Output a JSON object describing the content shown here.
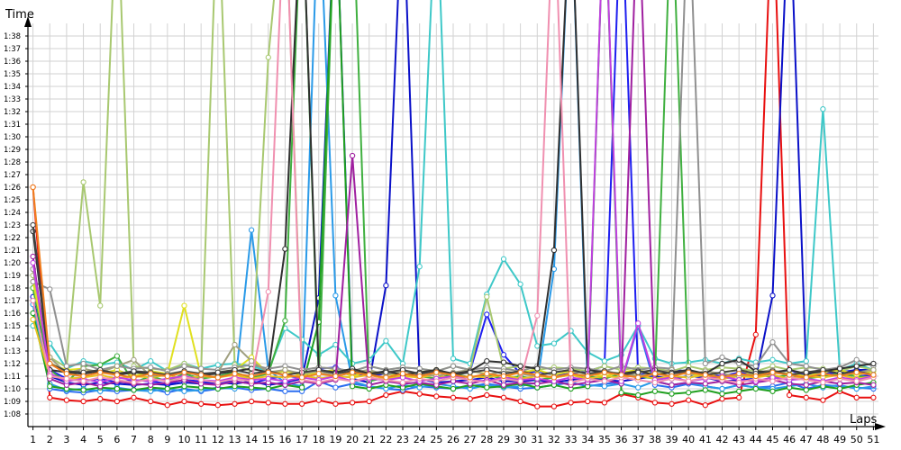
{
  "chart_data": {
    "type": "line",
    "xlabel": "Laps",
    "ylabel": "Time",
    "x": [
      1,
      2,
      3,
      4,
      5,
      6,
      7,
      8,
      9,
      10,
      11,
      12,
      13,
      14,
      15,
      16,
      17,
      18,
      19,
      20,
      21,
      22,
      23,
      24,
      25,
      26,
      27,
      28,
      29,
      30,
      31,
      32,
      33,
      34,
      35,
      36,
      37,
      38,
      39,
      40,
      41,
      42,
      43,
      44,
      45,
      46,
      47,
      48,
      49,
      50,
      51
    ],
    "xlim": [
      0.7,
      51.3
    ],
    "ylim_seconds": [
      67.0,
      99.0
    ],
    "y_ticks": [
      "1:08",
      "1:09",
      "1:10",
      "1:11",
      "1:12",
      "1:13",
      "1:14",
      "1:15",
      "1:16",
      "1:17",
      "1:18",
      "1:19",
      "1:20",
      "1:21",
      "1:22",
      "1:23",
      "1:24",
      "1:25",
      "1:26",
      "1:27",
      "1:28",
      "1:29",
      "1:30",
      "1:31",
      "1:32",
      "1:33",
      "1:34",
      "1:35",
      "1:36",
      "1:37",
      "1:38"
    ],
    "y_ticks_seconds": [
      68,
      69,
      70,
      71,
      72,
      73,
      74,
      75,
      76,
      77,
      78,
      79,
      80,
      81,
      82,
      83,
      84,
      85,
      86,
      87,
      88,
      89,
      90,
      91,
      92,
      93,
      94,
      95,
      96,
      97,
      98
    ],
    "grid": true,
    "legend": "none",
    "series": [
      {
        "color": "#e81010",
        "values": [
          86.0,
          69.3,
          69.1,
          69.0,
          69.2,
          69.0,
          69.3,
          69.0,
          68.7,
          69.0,
          68.8,
          68.7,
          68.8,
          69.0,
          68.9,
          68.8,
          68.8,
          69.1,
          68.8,
          68.9,
          69.0,
          69.5,
          69.8,
          69.6,
          69.4,
          69.3,
          69.2,
          69.5,
          69.3,
          69.0,
          68.6,
          68.6,
          68.9,
          69.0,
          68.9,
          69.6,
          69.3,
          68.9,
          68.8,
          69.1,
          68.7,
          69.2,
          69.3,
          74.3,
          110,
          69.5,
          69.3,
          69.1,
          69.8,
          69.3,
          69.3
        ]
      },
      {
        "color": "#0a10c8",
        "values": [
          77.3,
          71.0,
          70.5,
          70.3,
          70.5,
          70.4,
          70.3,
          70.4,
          70.3,
          70.5,
          70.4,
          70.5,
          70.4,
          70.6,
          70.3,
          70.5,
          70.8,
          77.2,
          110,
          70.8,
          70.5,
          78.2,
          110,
          70.8,
          70.5,
          70.6,
          70.7,
          70.9,
          70.6,
          70.6,
          70.7,
          70.5,
          70.7,
          70.9,
          70.7,
          70.6,
          70.8,
          71.0,
          70.8,
          71.0,
          70.9,
          70.6,
          70.7,
          70.8,
          77.4,
          110,
          71.2,
          71.0,
          71.3,
          71.5,
          71.5
        ]
      },
      {
        "color": "#1e1ef0",
        "values": [
          79.5,
          71.5,
          70.8,
          70.6,
          70.8,
          70.5,
          70.7,
          70.6,
          70.4,
          70.7,
          70.6,
          70.5,
          70.6,
          70.4,
          70.8,
          71.0,
          70.9,
          71.6,
          71.7,
          71.2,
          71.0,
          71.2,
          71.5,
          71.0,
          71.3,
          71.2,
          71.4,
          75.9,
          72.7,
          71.2,
          71.4,
          71.1,
          71.2,
          71.4,
          71.8,
          110,
          71.1,
          71.3,
          71.5,
          71.4,
          71.2,
          71.0,
          71.3,
          71.1,
          71.2,
          71.5,
          71.0,
          71.3,
          71.2,
          71.0,
          71.1
        ]
      },
      {
        "color": "#2b6ef0",
        "values": [
          77.0,
          70.0,
          69.8,
          69.7,
          69.9,
          69.8,
          69.9,
          70.0,
          69.7,
          70.0,
          69.8,
          70.0,
          70.1,
          69.9,
          70.0,
          69.8,
          69.8,
          70.6,
          70.1,
          70.4,
          70.2,
          70.0,
          69.9,
          70.2,
          70.1,
          70.0,
          70.2,
          70.4,
          70.2,
          70.0,
          70.1,
          70.3,
          70.5,
          70.2,
          70.4,
          70.5,
          75.0,
          70.3,
          70.1,
          70.4,
          70.2,
          70.0,
          70.3,
          70.1,
          70.2,
          70.5,
          70.0,
          70.3,
          70.2,
          70.1,
          70.0
        ]
      },
      {
        "color": "#2a9ae8",
        "values": [
          76.7,
          70.4,
          69.9,
          70.0,
          69.8,
          70.1,
          69.9,
          69.8,
          70.0,
          69.8,
          69.9,
          70.1,
          70.0,
          82.6,
          71.5,
          70.5,
          70.2,
          110,
          77.4,
          70.6,
          70.2,
          70.0,
          70.3,
          70.1,
          70.4,
          70.2,
          70.0,
          70.3,
          70.1,
          70.2,
          70.5,
          79.5,
          110,
          70.3,
          70.2,
          70.4,
          70.1,
          70.6,
          70.3,
          70.5,
          70.2,
          70.0,
          70.3,
          70.1,
          70.0,
          70.2,
          70.4,
          70.1,
          70.3,
          70.0,
          70.2
        ]
      },
      {
        "color": "#3ec8c8",
        "values": [
          75.0,
          73.6,
          71.6,
          72.2,
          71.9,
          72.1,
          71.5,
          72.2,
          71.4,
          72.0,
          71.6,
          71.9,
          72.0,
          71.8,
          71.4,
          74.8,
          73.9,
          72.7,
          73.5,
          72.0,
          72.3,
          73.8,
          72.0,
          79.7,
          110,
          72.4,
          72.0,
          77.5,
          80.3,
          78.3,
          73.4,
          73.6,
          74.6,
          72.9,
          72.2,
          72.7,
          75.0,
          72.4,
          72.0,
          72.1,
          72.3,
          72.0,
          72.4,
          72.1,
          72.3,
          72.0,
          72.2,
          92.2,
          71.5,
          72.0,
          71.5
        ]
      },
      {
        "color": "#40b040",
        "values": [
          78.0,
          71.5,
          70.5,
          71.8,
          71.9,
          72.6,
          70.5,
          71.0,
          70.6,
          71.2,
          70.8,
          71.0,
          71.3,
          70.9,
          71.2,
          75.4,
          110,
          70.8,
          110,
          110,
          70.6,
          70.9,
          71.1,
          71.0,
          70.8,
          71.2,
          70.9,
          71.1,
          70.8,
          71.0,
          70.7,
          70.9,
          71.1,
          71.0,
          70.8,
          71.2,
          71.0,
          70.8,
          110,
          70.9,
          71.1,
          70.8,
          71.0,
          71.2,
          70.9,
          71.1,
          70.8,
          71.0,
          71.2,
          71.0,
          70.9
        ]
      },
      {
        "color": "#20a020",
        "values": [
          76.0,
          70.2,
          70.0,
          69.9,
          70.1,
          70.0,
          69.9,
          70.1,
          70.0,
          70.2,
          70.1,
          70.0,
          70.2,
          70.1,
          70.0,
          70.3,
          70.1,
          75.3,
          110,
          70.2,
          70.0,
          70.3,
          70.1,
          70.4,
          70.2,
          70.0,
          70.3,
          70.1,
          70.2,
          70.4,
          70.1,
          70.3,
          70.0,
          70.2,
          110,
          69.7,
          69.5,
          69.8,
          69.6,
          69.7,
          69.9,
          69.6,
          69.8,
          70.0,
          69.8,
          70.1,
          69.9,
          70.2,
          70.0,
          70.3,
          70.5
        ]
      },
      {
        "color": "#a8c870",
        "values": [
          79.0,
          72.5,
          71.7,
          86.4,
          76.6,
          110,
          71.8,
          71.6,
          71.5,
          72.0,
          71.5,
          110,
          71.9,
          71.4,
          96.3,
          110,
          71.5,
          71.7,
          71.6,
          71.4,
          71.8,
          71.5,
          71.7,
          71.6,
          71.4,
          71.8,
          71.5,
          77.3,
          71.6,
          71.8,
          71.5,
          71.7,
          71.6,
          71.4,
          71.8,
          71.5,
          71.7,
          71.6,
          71.4,
          71.8,
          71.5,
          71.7,
          71.6,
          71.4,
          71.8,
          71.5,
          71.7,
          71.6,
          71.4,
          71.8,
          71.5
        ]
      },
      {
        "color": "#e0e020",
        "values": [
          78.5,
          72.0,
          71.5,
          71.6,
          71.2,
          71.5,
          71.0,
          71.4,
          71.2,
          76.6,
          71.0,
          71.3,
          71.5,
          72.5,
          71.2,
          71.4,
          71.1,
          71.3,
          71.5,
          71.0,
          71.4,
          71.2,
          71.0,
          71.3,
          71.5,
          71.1,
          71.4,
          71.2,
          71.0,
          71.3,
          71.5,
          71.1,
          71.4,
          71.2,
          71.0,
          71.3,
          71.5,
          71.1,
          71.4,
          71.2,
          71.0,
          71.3,
          71.5,
          71.1,
          71.4,
          71.2,
          71.0,
          71.3,
          71.5,
          71.1,
          71.4
        ]
      },
      {
        "color": "#e8c020",
        "values": [
          75.5,
          71.0,
          70.8,
          70.9,
          71.1,
          70.8,
          71.0,
          70.9,
          71.1,
          70.8,
          71.0,
          70.9,
          71.1,
          70.8,
          71.0,
          70.9,
          71.1,
          70.8,
          71.0,
          70.9,
          71.1,
          70.8,
          71.0,
          70.9,
          71.1,
          70.8,
          71.0,
          70.9,
          71.1,
          70.8,
          71.0,
          70.9,
          71.1,
          70.8,
          71.0,
          70.9,
          71.1,
          70.8,
          71.0,
          70.9,
          71.1,
          70.8,
          71.0,
          70.9,
          71.1,
          70.8,
          71.0,
          70.9,
          71.1,
          70.8,
          71.0
        ]
      },
      {
        "color": "#909090",
        "values": [
          78.5,
          77.9,
          71.8,
          72.0,
          71.5,
          71.8,
          71.6,
          71.7,
          71.4,
          71.8,
          71.6,
          71.5,
          71.7,
          71.9,
          71.6,
          71.8,
          71.5,
          71.7,
          71.6,
          71.4,
          71.8,
          71.5,
          71.7,
          71.6,
          71.4,
          71.8,
          71.5,
          71.7,
          71.6,
          71.4,
          71.8,
          71.5,
          71.7,
          71.6,
          71.4,
          71.8,
          71.5,
          71.7,
          71.6,
          110,
          72.0,
          72.5,
          72.0,
          71.8,
          73.7,
          72.0,
          71.8,
          71.5,
          71.7,
          72.3,
          71.8
        ]
      },
      {
        "color": "#a0a080",
        "values": [
          79.5,
          72.5,
          71.2,
          71.6,
          71.3,
          71.8,
          72.3,
          71.0,
          71.2,
          71.4,
          71.0,
          71.3,
          73.5,
          72.2,
          71.3,
          71.5,
          71.2,
          71.4,
          71.0,
          71.3,
          71.5,
          71.1,
          71.4,
          71.2,
          71.0,
          71.3,
          71.5,
          71.1,
          71.4,
          71.2,
          71.0,
          71.3,
          71.5,
          71.1,
          71.4,
          71.2,
          71.0,
          71.3,
          71.5,
          71.1,
          71.4,
          71.2,
          71.0,
          71.3,
          71.5,
          71.1,
          71.4,
          71.2,
          71.0,
          71.3,
          71.5
        ]
      },
      {
        "color": "#303030",
        "values": [
          82.5,
          71.5,
          71.3,
          71.2,
          71.4,
          71.1,
          71.3,
          71.2,
          71.0,
          71.3,
          71.1,
          71.2,
          71.4,
          71.6,
          71.3,
          81.1,
          110,
          71.5,
          71.3,
          71.6,
          71.2,
          71.4,
          71.1,
          71.3,
          71.5,
          71.2,
          71.4,
          72.2,
          72.1,
          71.8,
          71.6,
          81.0,
          110,
          71.5,
          71.3,
          71.2,
          71.4,
          71.1,
          71.3,
          71.5,
          71.2,
          72.0,
          72.3,
          71.4,
          71.3,
          71.5,
          71.2,
          71.4,
          71.6,
          71.8,
          72.0
        ]
      },
      {
        "color": "#404040",
        "values": [
          83.0,
          72.0,
          71.4,
          71.3,
          71.5,
          71.2,
          71.4,
          71.3,
          71.1,
          71.4,
          71.2,
          71.3,
          71.5,
          71.2,
          71.4,
          71.1,
          71.3,
          71.5,
          71.2,
          71.4,
          71.1,
          71.3,
          71.5,
          71.2,
          71.4,
          71.1,
          71.3,
          71.5,
          71.2,
          71.4,
          71.1,
          71.3,
          71.5,
          71.2,
          71.4,
          71.1,
          71.3,
          71.5,
          71.2,
          71.4,
          71.1,
          71.3,
          71.5,
          71.2,
          71.4,
          71.1,
          71.3,
          71.5,
          71.2,
          71.4,
          71.1
        ]
      },
      {
        "color": "#a020a0",
        "values": [
          80.5,
          70.8,
          70.3,
          70.5,
          70.2,
          70.6,
          70.4,
          70.3,
          70.5,
          70.7,
          70.4,
          70.3,
          70.6,
          70.4,
          70.5,
          70.3,
          70.6,
          70.4,
          70.7,
          88.5,
          70.3,
          70.6,
          70.4,
          70.5,
          70.3,
          70.6,
          70.4,
          70.7,
          70.3,
          70.5,
          70.4,
          70.6,
          70.3,
          70.5,
          70.7,
          70.4,
          110,
          70.6,
          70.3,
          70.5,
          70.4,
          70.6,
          70.3,
          70.5,
          70.7,
          70.4,
          70.3,
          70.6,
          70.4,
          70.5,
          70.3
        ]
      },
      {
        "color": "#c040e0",
        "values": [
          80.0,
          71.2,
          70.6,
          70.8,
          70.5,
          70.9,
          70.7,
          70.6,
          70.8,
          71.0,
          70.7,
          70.6,
          70.9,
          70.7,
          70.8,
          70.6,
          70.9,
          70.7,
          71.0,
          70.6,
          70.8,
          70.7,
          70.9,
          70.6,
          70.8,
          71.0,
          70.7,
          70.6,
          70.9,
          70.7,
          70.8,
          70.6,
          70.9,
          70.7,
          110,
          70.6,
          75.2,
          70.7,
          70.9,
          70.6,
          70.8,
          71.0,
          70.7,
          70.6,
          70.9,
          70.7,
          70.8,
          70.6,
          70.9,
          70.7,
          71.0
        ]
      },
      {
        "color": "#f090b0",
        "values": [
          77.0,
          71.0,
          70.8,
          70.6,
          70.9,
          70.7,
          70.5,
          70.8,
          70.6,
          70.9,
          70.7,
          70.5,
          70.8,
          70.6,
          77.7,
          110,
          70.7,
          70.5,
          70.8,
          70.6,
          70.9,
          70.7,
          70.5,
          70.8,
          70.6,
          70.9,
          70.7,
          70.5,
          70.8,
          70.6,
          75.8,
          110,
          70.5,
          70.8,
          70.6,
          70.9,
          70.7,
          70.5,
          70.8,
          70.6,
          70.9,
          70.7,
          70.5,
          70.8,
          70.6,
          70.9,
          70.7,
          70.5,
          70.8,
          70.6,
          70.9
        ]
      },
      {
        "color": "#f08020",
        "values": [
          86.0,
          72.0,
          71.2,
          71.0,
          71.3,
          71.1,
          70.9,
          71.2,
          71.0,
          71.3,
          71.1,
          70.9,
          71.2,
          71.0,
          71.3,
          71.1,
          70.9,
          71.2,
          71.0,
          71.3,
          71.1,
          70.9,
          71.2,
          71.0,
          71.3,
          71.1,
          70.9,
          71.2,
          71.0,
          71.3,
          71.1,
          70.9,
          71.2,
          71.0,
          71.3,
          71.1,
          70.9,
          71.2,
          71.0,
          71.3,
          71.1,
          70.9,
          71.2,
          71.0,
          71.3,
          71.1,
          70.9,
          71.2,
          71.0,
          71.3,
          71.1
        ]
      }
    ]
  }
}
